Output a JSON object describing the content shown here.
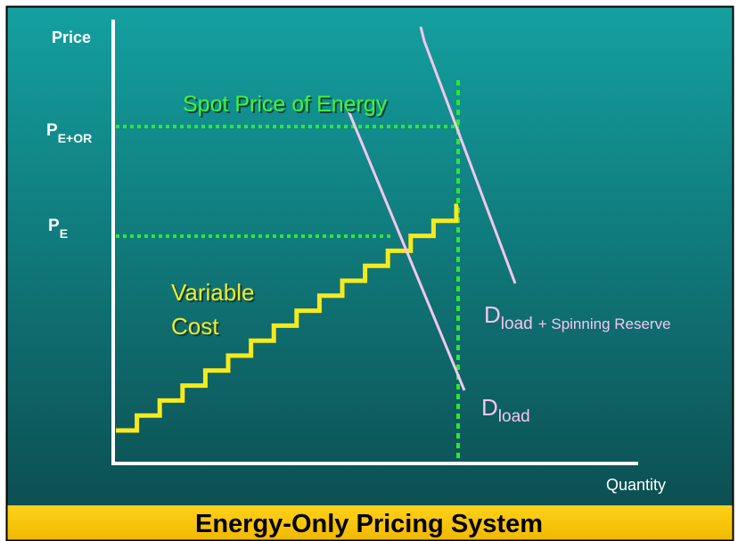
{
  "axes": {
    "y_label": "Price",
    "x_label": "Quantity"
  },
  "price_levels": [
    {
      "symbol": "P",
      "subscript": "E+OR"
    },
    {
      "symbol": "P",
      "subscript": "E"
    }
  ],
  "annotations": {
    "spot_price": "Spot Price of Energy",
    "variable_cost": [
      "Variable",
      "Cost"
    ]
  },
  "curves": [
    {
      "symbol": "D",
      "subscript": "load",
      "suffix": "+ Spinning Reserve"
    },
    {
      "symbol": "D",
      "subscript": "load"
    }
  ],
  "footer": {
    "title": "Energy-Only Pricing System"
  }
}
